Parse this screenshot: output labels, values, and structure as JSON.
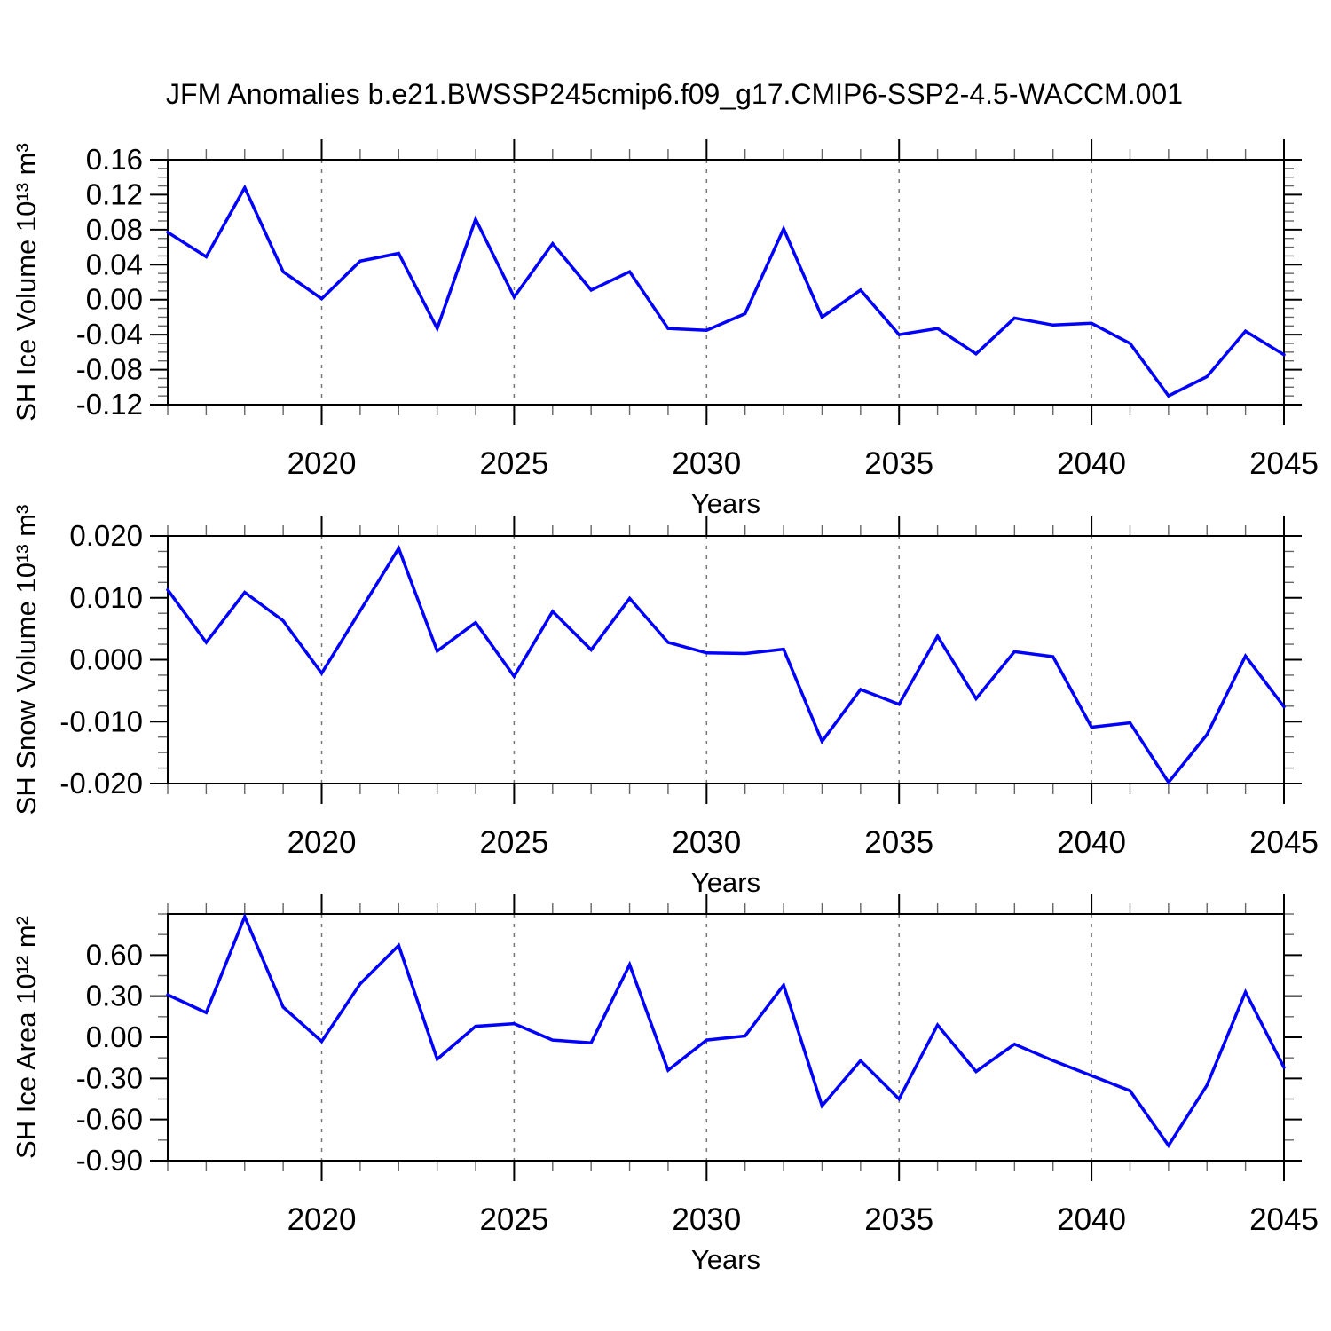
{
  "page": {
    "title": "JFM Anomalies b.e21.BWSSP245cmip6.f09_g17.CMIP6-SSP2-4.5-WACCM.001",
    "background": "#ffffff"
  },
  "colors": {
    "line": "#0000ff",
    "grid": "#777777",
    "axis": "#000000",
    "minor_tick": "#666666"
  },
  "x_axis": {
    "label": "Years",
    "range": [
      2016,
      2045
    ],
    "major_ticks": [
      2020,
      2025,
      2030,
      2035,
      2040,
      2045
    ],
    "major_tick_labels": [
      "2020",
      "2025",
      "2030",
      "2035",
      "2040",
      "2045"
    ],
    "minor_step": 1,
    "gridlines": [
      2020,
      2025,
      2030,
      2035,
      2040
    ]
  },
  "chart_data": [
    {
      "type": "line",
      "name": "sh-ice-volume",
      "ylabel": "SH Ice Volume 10¹³ m³",
      "ylim": [
        -0.12,
        0.16
      ],
      "yticks": [
        0.16,
        0.12,
        0.08,
        0.04,
        0.0,
        -0.04,
        -0.08,
        -0.12
      ],
      "ytick_labels": [
        "0.16",
        "0.12",
        "0.08",
        "0.04",
        "0.00",
        "-0.04",
        "-0.08",
        "-0.12"
      ],
      "y_minor_step": 0.01,
      "x": [
        2016,
        2017,
        2018,
        2019,
        2020,
        2021,
        2022,
        2023,
        2024,
        2025,
        2026,
        2027,
        2028,
        2029,
        2030,
        2031,
        2032,
        2033,
        2034,
        2035,
        2036,
        2037,
        2038,
        2039,
        2040,
        2041,
        2042,
        2043,
        2044,
        2045
      ],
      "values": [
        0.077,
        0.049,
        0.128,
        0.032,
        0.001,
        0.044,
        0.053,
        -0.033,
        0.092,
        0.003,
        0.064,
        0.011,
        0.032,
        -0.033,
        -0.035,
        -0.016,
        0.081,
        -0.02,
        0.011,
        -0.04,
        -0.033,
        -0.062,
        -0.021,
        -0.029,
        -0.027,
        -0.05,
        -0.11,
        -0.088,
        -0.036,
        -0.063
      ]
    },
    {
      "type": "line",
      "name": "sh-snow-volume",
      "ylabel": "SH Snow Volume 10¹³ m³",
      "ylim": [
        -0.02,
        0.02
      ],
      "yticks": [
        0.02,
        0.01,
        0.0,
        -0.01,
        -0.02
      ],
      "ytick_labels": [
        "0.020",
        "0.010",
        "0.000",
        "-0.010",
        "-0.020"
      ],
      "y_minor_step": 0.0025,
      "x": [
        2016,
        2017,
        2018,
        2019,
        2020,
        2021,
        2022,
        2023,
        2024,
        2025,
        2026,
        2027,
        2028,
        2029,
        2030,
        2031,
        2032,
        2033,
        2034,
        2035,
        2036,
        2037,
        2038,
        2039,
        2040,
        2041,
        2042,
        2043,
        2044,
        2045
      ],
      "values": [
        0.0113,
        0.0028,
        0.0109,
        0.0063,
        -0.0022,
        0.0079,
        0.018,
        0.0014,
        0.006,
        -0.0027,
        0.0078,
        0.0016,
        0.0099,
        0.0028,
        0.0011,
        0.001,
        0.0017,
        -0.0132,
        -0.0048,
        -0.0072,
        0.0038,
        -0.0063,
        0.0013,
        0.0005,
        -0.0109,
        -0.0102,
        -0.0198,
        -0.0121,
        0.0006,
        -0.0076
      ]
    },
    {
      "type": "line",
      "name": "sh-ice-area",
      "ylabel": "SH Ice Area 10¹² m²",
      "ylim": [
        -0.9,
        0.9
      ],
      "yticks": [
        0.6,
        0.3,
        0.0,
        -0.3,
        -0.6,
        -0.9
      ],
      "ytick_labels": [
        "0.60",
        "0.30",
        "0.00",
        "-0.30",
        "-0.60",
        "-0.90"
      ],
      "y_minor_step": 0.15,
      "x": [
        2016,
        2017,
        2018,
        2019,
        2020,
        2021,
        2022,
        2023,
        2024,
        2025,
        2026,
        2027,
        2028,
        2029,
        2030,
        2031,
        2032,
        2033,
        2034,
        2035,
        2036,
        2037,
        2038,
        2039,
        2040,
        2041,
        2042,
        2043,
        2044,
        2045
      ],
      "values": [
        0.31,
        0.18,
        0.88,
        0.22,
        -0.03,
        0.39,
        0.67,
        -0.16,
        0.08,
        0.1,
        -0.02,
        -0.04,
        0.53,
        -0.24,
        -0.02,
        0.01,
        0.38,
        -0.5,
        -0.17,
        -0.45,
        0.09,
        -0.25,
        -0.05,
        -0.17,
        -0.28,
        -0.39,
        -0.79,
        -0.35,
        0.33,
        -0.22
      ]
    }
  ]
}
